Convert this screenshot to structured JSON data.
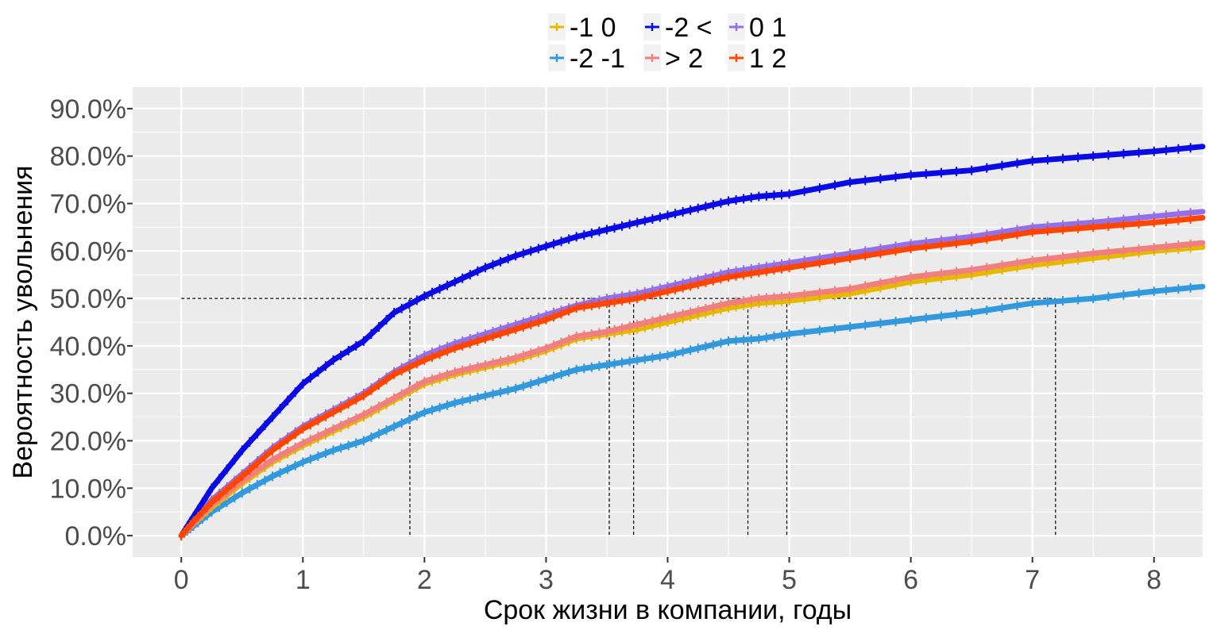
{
  "chart_data": {
    "type": "line",
    "xlabel": "Срок жизни в компании, годы",
    "ylabel": "Вероятность увольнения",
    "xlim": [
      -0.4,
      8.4
    ],
    "ylim": [
      -0.045,
      0.945
    ],
    "x_ticks": [
      0,
      1,
      2,
      3,
      4,
      5,
      6,
      7,
      8
    ],
    "x_tick_labels": [
      "0",
      "1",
      "2",
      "3",
      "4",
      "5",
      "6",
      "7",
      "8"
    ],
    "y_ticks": [
      0,
      0.1,
      0.2,
      0.3,
      0.4,
      0.5,
      0.6,
      0.7,
      0.8,
      0.9
    ],
    "y_tick_labels": [
      "0.0%",
      "10.0%",
      "20.0%",
      "30.0%",
      "40.0%",
      "50.0%",
      "60.0%",
      "70.0%",
      "80.0%",
      "90.0%"
    ],
    "grid": true,
    "legend_position": "top",
    "legend": [
      {
        "label": "-1 0",
        "color": "#E6B800"
      },
      {
        "label": "-2 -1",
        "color": "#3399DD"
      },
      {
        "label": "-2 <",
        "color": "#0A0AE6"
      },
      {
        "label": "> 2",
        "color": "#F08080"
      },
      {
        "label": "0 1",
        "color": "#9370EB"
      },
      {
        "label": "1 2",
        "color": "#FF4500"
      }
    ],
    "series": [
      {
        "name": "-1 0",
        "color": "#E6B800",
        "x": [
          0,
          0.1,
          0.25,
          0.5,
          0.75,
          1.0,
          1.25,
          1.5,
          1.75,
          2.0,
          2.25,
          2.5,
          2.75,
          3.0,
          3.25,
          3.5,
          3.75,
          4.0,
          4.25,
          4.5,
          4.75,
          5.0,
          5.5,
          6.0,
          6.5,
          7.0,
          7.5,
          8.0,
          8.4
        ],
        "y": [
          0,
          0.025,
          0.06,
          0.11,
          0.155,
          0.19,
          0.22,
          0.25,
          0.285,
          0.32,
          0.34,
          0.355,
          0.37,
          0.39,
          0.415,
          0.425,
          0.435,
          0.45,
          0.465,
          0.48,
          0.49,
          0.495,
          0.51,
          0.535,
          0.55,
          0.57,
          0.585,
          0.6,
          0.608
        ]
      },
      {
        "name": "-2 -1",
        "color": "#3399DD",
        "x": [
          0,
          0.1,
          0.25,
          0.5,
          0.75,
          1.0,
          1.25,
          1.5,
          1.75,
          2.0,
          2.25,
          2.5,
          2.75,
          3.0,
          3.25,
          3.5,
          3.75,
          4.0,
          4.25,
          4.5,
          4.75,
          5.0,
          5.5,
          6.0,
          6.5,
          7.0,
          7.5,
          8.0,
          8.4
        ],
        "y": [
          0,
          0.02,
          0.05,
          0.09,
          0.125,
          0.155,
          0.18,
          0.2,
          0.23,
          0.26,
          0.28,
          0.295,
          0.31,
          0.33,
          0.35,
          0.36,
          0.37,
          0.38,
          0.395,
          0.41,
          0.415,
          0.425,
          0.44,
          0.455,
          0.47,
          0.49,
          0.5,
          0.515,
          0.525
        ]
      },
      {
        "name": "-2 <",
        "color": "#0A0AE6",
        "x": [
          0,
          0.1,
          0.25,
          0.5,
          0.75,
          1.0,
          1.25,
          1.5,
          1.75,
          2.0,
          2.25,
          2.5,
          2.75,
          3.0,
          3.25,
          3.5,
          3.75,
          4.0,
          4.25,
          4.5,
          4.75,
          5.0,
          5.5,
          6.0,
          6.5,
          7.0,
          7.5,
          8.0,
          8.4
        ],
        "y": [
          0,
          0.04,
          0.1,
          0.18,
          0.25,
          0.32,
          0.37,
          0.41,
          0.47,
          0.505,
          0.535,
          0.565,
          0.59,
          0.61,
          0.63,
          0.645,
          0.66,
          0.675,
          0.69,
          0.705,
          0.715,
          0.72,
          0.745,
          0.76,
          0.77,
          0.79,
          0.8,
          0.81,
          0.82
        ]
      },
      {
        "name": "> 2",
        "color": "#F08080",
        "x": [
          0,
          0.1,
          0.25,
          0.5,
          0.75,
          1.0,
          1.25,
          1.5,
          1.75,
          2.0,
          2.25,
          2.5,
          2.75,
          3.0,
          3.25,
          3.5,
          3.75,
          4.0,
          4.25,
          4.5,
          4.75,
          5.0,
          5.5,
          6.0,
          6.5,
          7.0,
          7.5,
          8.0,
          8.4
        ],
        "y": [
          0,
          0.025,
          0.065,
          0.115,
          0.16,
          0.195,
          0.225,
          0.255,
          0.29,
          0.325,
          0.345,
          0.36,
          0.375,
          0.395,
          0.42,
          0.43,
          0.445,
          0.46,
          0.475,
          0.49,
          0.5,
          0.505,
          0.52,
          0.545,
          0.56,
          0.58,
          0.595,
          0.607,
          0.617
        ]
      },
      {
        "name": "0 1",
        "color": "#9370EB",
        "x": [
          0,
          0.1,
          0.25,
          0.5,
          0.75,
          1.0,
          1.25,
          1.5,
          1.75,
          2.0,
          2.25,
          2.5,
          2.75,
          3.0,
          3.25,
          3.5,
          3.75,
          4.0,
          4.25,
          4.5,
          4.75,
          5.0,
          5.5,
          6.0,
          6.5,
          7.0,
          7.5,
          8.0,
          8.4
        ],
        "y": [
          0,
          0.03,
          0.075,
          0.13,
          0.185,
          0.23,
          0.265,
          0.3,
          0.345,
          0.38,
          0.405,
          0.425,
          0.445,
          0.465,
          0.485,
          0.5,
          0.51,
          0.525,
          0.54,
          0.555,
          0.565,
          0.575,
          0.595,
          0.615,
          0.63,
          0.65,
          0.66,
          0.673,
          0.683
        ]
      },
      {
        "name": "1 2",
        "color": "#FF4500",
        "x": [
          0,
          0.1,
          0.25,
          0.5,
          0.75,
          1.0,
          1.25,
          1.5,
          1.75,
          2.0,
          2.25,
          2.5,
          2.75,
          3.0,
          3.25,
          3.5,
          3.75,
          4.0,
          4.25,
          4.5,
          4.75,
          5.0,
          5.5,
          6.0,
          6.5,
          7.0,
          7.5,
          8.0,
          8.4
        ],
        "y": [
          0,
          0.03,
          0.07,
          0.125,
          0.18,
          0.225,
          0.26,
          0.295,
          0.34,
          0.37,
          0.395,
          0.415,
          0.435,
          0.455,
          0.48,
          0.49,
          0.5,
          0.515,
          0.53,
          0.545,
          0.555,
          0.565,
          0.585,
          0.605,
          0.62,
          0.64,
          0.65,
          0.66,
          0.67
        ]
      }
    ],
    "reference_lines": {
      "y": 0.5,
      "x": [
        1.88,
        3.52,
        3.72,
        4.66,
        4.98,
        7.19
      ]
    }
  }
}
